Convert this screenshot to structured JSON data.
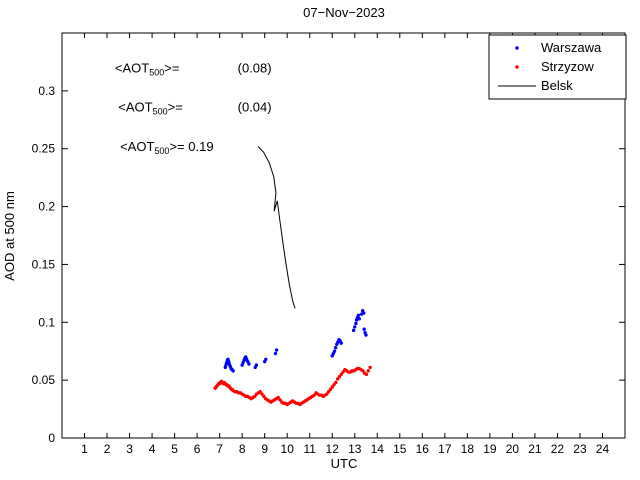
{
  "figure": {
    "background": "#ffffff",
    "axes_color": "#000000"
  },
  "chart_data": {
    "type": "scatter",
    "title": "07−Nov−2023",
    "xlabel": "UTC",
    "ylabel": "AOD at 500 nm",
    "xlim": [
      0,
      25
    ],
    "ylim": [
      0,
      0.35
    ],
    "grid": false,
    "xticks": [
      1,
      2,
      3,
      4,
      5,
      6,
      7,
      8,
      9,
      10,
      11,
      12,
      13,
      14,
      15,
      16,
      17,
      18,
      19,
      20,
      21,
      22,
      23,
      24
    ],
    "xtick_labels": [
      "1",
      "2",
      "3",
      "4",
      "5",
      "6",
      "7",
      "8",
      "9",
      "10",
      "11",
      "12",
      "13",
      "14",
      "15",
      "16",
      "17",
      "18",
      "19",
      "20",
      "21",
      "22",
      "23",
      "24"
    ],
    "yticks": [
      0,
      0.05,
      0.1,
      0.15,
      0.2,
      0.25,
      0.3
    ],
    "ytick_labels": [
      "0",
      "0.05",
      "0.1",
      "0.15",
      "0.2",
      "0.25",
      "0.3"
    ],
    "legend": {
      "position": "top-right"
    },
    "series": [
      {
        "name": "Warszawa",
        "type": "scatter",
        "color": "#0000ff",
        "points": [
          [
            7.25,
            0.061
          ],
          [
            7.28,
            0.063
          ],
          [
            7.31,
            0.065
          ],
          [
            7.34,
            0.067
          ],
          [
            7.37,
            0.068
          ],
          [
            7.4,
            0.066
          ],
          [
            7.43,
            0.064
          ],
          [
            7.47,
            0.062
          ],
          [
            7.51,
            0.06
          ],
          [
            7.56,
            0.059
          ],
          [
            7.6,
            0.058
          ],
          [
            8.0,
            0.063
          ],
          [
            8.04,
            0.065
          ],
          [
            8.08,
            0.067
          ],
          [
            8.12,
            0.069
          ],
          [
            8.16,
            0.07
          ],
          [
            8.2,
            0.068
          ],
          [
            8.25,
            0.066
          ],
          [
            8.3,
            0.064
          ],
          [
            8.58,
            0.061
          ],
          [
            8.63,
            0.063
          ],
          [
            9.0,
            0.066
          ],
          [
            9.05,
            0.068
          ],
          [
            9.48,
            0.073
          ],
          [
            9.53,
            0.076
          ],
          [
            12.0,
            0.071
          ],
          [
            12.05,
            0.073
          ],
          [
            12.1,
            0.075
          ],
          [
            12.15,
            0.078
          ],
          [
            12.2,
            0.081
          ],
          [
            12.25,
            0.083
          ],
          [
            12.3,
            0.085
          ],
          [
            12.35,
            0.084
          ],
          [
            12.4,
            0.082
          ],
          [
            12.95,
            0.093
          ],
          [
            13.0,
            0.096
          ],
          [
            13.05,
            0.099
          ],
          [
            13.08,
            0.102
          ],
          [
            13.12,
            0.104
          ],
          [
            13.16,
            0.106
          ],
          [
            13.2,
            0.103
          ],
          [
            13.3,
            0.107
          ],
          [
            13.35,
            0.11
          ],
          [
            13.4,
            0.108
          ],
          [
            13.42,
            0.094
          ],
          [
            13.46,
            0.091
          ],
          [
            13.5,
            0.089
          ]
        ]
      },
      {
        "name": "Strzyzow",
        "type": "scatter",
        "color": "#ff0000",
        "points": [
          [
            6.8,
            0.043
          ],
          [
            6.84,
            0.044
          ],
          [
            6.88,
            0.045
          ],
          [
            6.92,
            0.046
          ],
          [
            6.96,
            0.047
          ],
          [
            7.0,
            0.047
          ],
          [
            7.04,
            0.048
          ],
          [
            7.08,
            0.049
          ],
          [
            7.12,
            0.048
          ],
          [
            7.16,
            0.047
          ],
          [
            7.2,
            0.048
          ],
          [
            7.24,
            0.047
          ],
          [
            7.28,
            0.046
          ],
          [
            7.32,
            0.046
          ],
          [
            7.36,
            0.045
          ],
          [
            7.4,
            0.045
          ],
          [
            7.44,
            0.044
          ],
          [
            7.48,
            0.043
          ],
          [
            7.52,
            0.042
          ],
          [
            7.56,
            0.042
          ],
          [
            7.6,
            0.041
          ],
          [
            7.68,
            0.04
          ],
          [
            7.76,
            0.04
          ],
          [
            7.84,
            0.039
          ],
          [
            7.92,
            0.039
          ],
          [
            8.0,
            0.038
          ],
          [
            8.08,
            0.037
          ],
          [
            8.16,
            0.036
          ],
          [
            8.24,
            0.036
          ],
          [
            8.32,
            0.035
          ],
          [
            8.4,
            0.034
          ],
          [
            8.48,
            0.035
          ],
          [
            8.56,
            0.036
          ],
          [
            8.64,
            0.038
          ],
          [
            8.72,
            0.039
          ],
          [
            8.8,
            0.04
          ],
          [
            8.88,
            0.038
          ],
          [
            8.96,
            0.036
          ],
          [
            9.04,
            0.034
          ],
          [
            9.12,
            0.033
          ],
          [
            9.2,
            0.032
          ],
          [
            9.28,
            0.031
          ],
          [
            9.36,
            0.032
          ],
          [
            9.44,
            0.033
          ],
          [
            9.52,
            0.034
          ],
          [
            9.6,
            0.035
          ],
          [
            9.68,
            0.033
          ],
          [
            9.76,
            0.031
          ],
          [
            9.84,
            0.03
          ],
          [
            9.92,
            0.03
          ],
          [
            10.0,
            0.029
          ],
          [
            10.08,
            0.03
          ],
          [
            10.16,
            0.031
          ],
          [
            10.24,
            0.032
          ],
          [
            10.32,
            0.031
          ],
          [
            10.4,
            0.03
          ],
          [
            10.48,
            0.03
          ],
          [
            10.56,
            0.029
          ],
          [
            10.64,
            0.03
          ],
          [
            10.72,
            0.031
          ],
          [
            10.8,
            0.032
          ],
          [
            10.88,
            0.033
          ],
          [
            10.96,
            0.034
          ],
          [
            11.04,
            0.035
          ],
          [
            11.12,
            0.036
          ],
          [
            11.2,
            0.037
          ],
          [
            11.28,
            0.039
          ],
          [
            11.36,
            0.038
          ],
          [
            11.44,
            0.037
          ],
          [
            11.52,
            0.037
          ],
          [
            11.6,
            0.036
          ],
          [
            11.68,
            0.037
          ],
          [
            11.76,
            0.038
          ],
          [
            11.84,
            0.04
          ],
          [
            11.92,
            0.042
          ],
          [
            12.0,
            0.044
          ],
          [
            12.08,
            0.046
          ],
          [
            12.16,
            0.048
          ],
          [
            12.24,
            0.051
          ],
          [
            12.32,
            0.053
          ],
          [
            12.4,
            0.055
          ],
          [
            12.48,
            0.057
          ],
          [
            12.56,
            0.059
          ],
          [
            12.64,
            0.058
          ],
          [
            12.72,
            0.057
          ],
          [
            12.8,
            0.057
          ],
          [
            12.88,
            0.058
          ],
          [
            12.96,
            0.058
          ],
          [
            13.04,
            0.059
          ],
          [
            13.12,
            0.06
          ],
          [
            13.2,
            0.06
          ],
          [
            13.28,
            0.059
          ],
          [
            13.36,
            0.058
          ],
          [
            13.44,
            0.056
          ],
          [
            13.52,
            0.055
          ],
          [
            13.6,
            0.058
          ],
          [
            13.68,
            0.061
          ]
        ]
      },
      {
        "name": "Belsk",
        "type": "line",
        "color": "#000000",
        "points": [
          [
            8.7,
            0.252
          ],
          [
            8.95,
            0.247
          ],
          [
            9.2,
            0.238
          ],
          [
            9.4,
            0.226
          ],
          [
            9.5,
            0.212
          ],
          [
            9.42,
            0.196
          ],
          [
            9.56,
            0.205
          ],
          [
            9.66,
            0.19
          ],
          [
            9.8,
            0.17
          ],
          [
            9.95,
            0.15
          ],
          [
            10.1,
            0.132
          ],
          [
            10.25,
            0.118
          ],
          [
            10.35,
            0.112
          ]
        ]
      }
    ],
    "annotations": [
      {
        "name": "warszawa-mean",
        "color": "#0000ff",
        "prefix": "<AOT",
        "sub": "500",
        "mid": ">=",
        "value": "(0.08)",
        "x": 2.35,
        "y": 0.316,
        "value_x": 7.8
      },
      {
        "name": "strzyzow-mean",
        "color": "#ff0000",
        "prefix": "<AOT",
        "sub": "500",
        "mid": ">=",
        "value": "(0.04)",
        "x": 2.5,
        "y": 0.282,
        "value_x": 7.8
      },
      {
        "name": "belsk-mean",
        "color": "#000000",
        "prefix": "<AOT",
        "sub": "500",
        "mid": ">= 0.19",
        "value": "",
        "x": 2.58,
        "y": 0.248,
        "value_x": null
      }
    ]
  }
}
